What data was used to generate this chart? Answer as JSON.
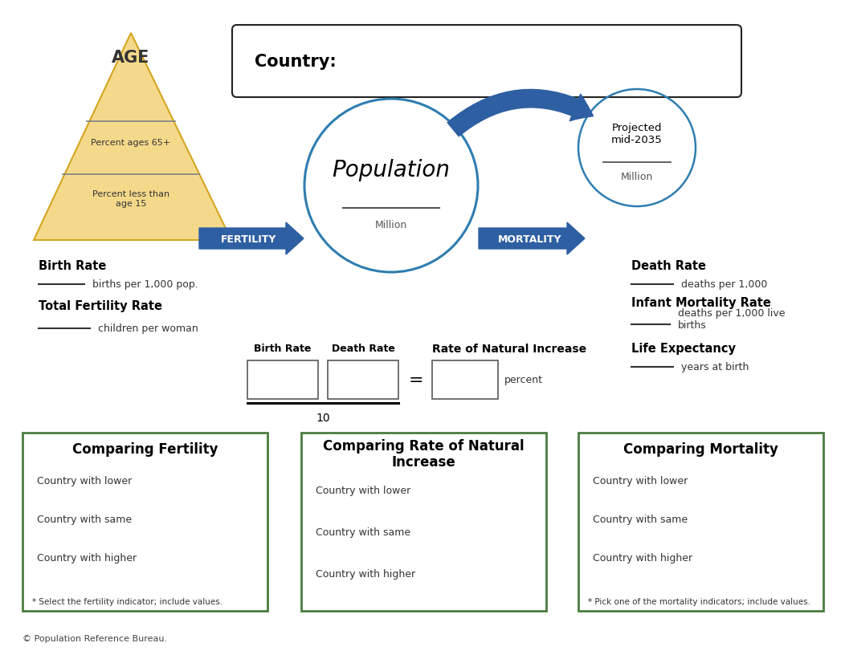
{
  "bg_color": "#ffffff",
  "triangle_color": "#f5d98b",
  "triangle_outline": "#d4a520",
  "blue_arrow_color": "#2E5FA3",
  "circle_color": "#2E7DB0",
  "green_box_color": "#4a7c3f",
  "age_label": "AGE",
  "country_label": "Country:",
  "population_label": "Population",
  "million_label": "Million",
  "fertility_label": "FERTILITY",
  "mortality_label": "MORTALITY",
  "projected_label": "Projected\nmid-2035",
  "projected_million": "Million",
  "birth_rate_label": "Birth Rate",
  "birth_rate_desc": "births per 1,000 pop.",
  "tfr_label": "Total Fertility Rate",
  "tfr_desc": "children per woman",
  "death_rate_label": "Death Rate",
  "death_rate_desc": "deaths per 1,000",
  "imr_label": "Infant Mortality Rate",
  "imr_desc": "deaths per 1,000 live\nbirths",
  "le_label": "Life Expectancy",
  "le_desc": "years at birth",
  "percent_65_label": "Percent ages 65+",
  "percent_15_label": "Percent less than\nage 15",
  "birth_rate_box_label": "Birth Rate",
  "death_rate_box_label": "Death Rate",
  "rni_label": "Rate of Natural Increase",
  "rni_unit": "percent",
  "denominator": "10",
  "box1_title": "Comparing Fertility",
  "box1_items": [
    "Country with lower",
    "Country with same",
    "Country with higher"
  ],
  "box1_note": "* Select the fertility indicator; include values.",
  "box2_title": "Comparing Rate of Natural\nIncrease",
  "box2_items": [
    "Country with lower",
    "Country with same",
    "Country with higher"
  ],
  "box3_title": "Comparing Mortality",
  "box3_items": [
    "Country with lower",
    "Country with same",
    "Country with higher"
  ],
  "box3_note": "* Pick one of the mortality indicators; include values.",
  "copyright": "© Population Reference Bureau."
}
